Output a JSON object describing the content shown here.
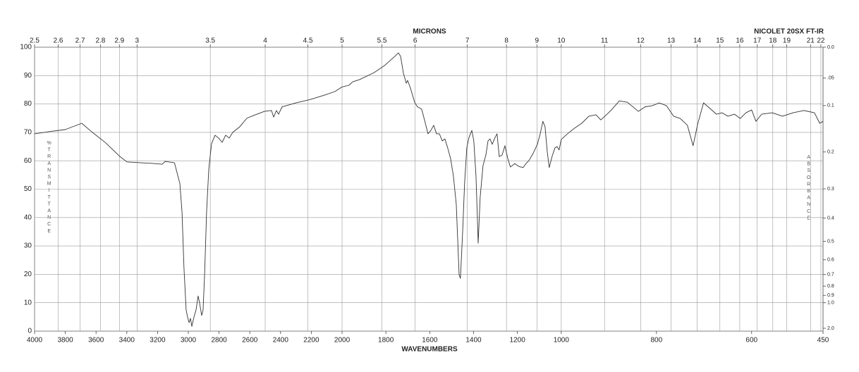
{
  "chart_data": {
    "type": "line",
    "title": "NICOLET 20SX FT-IR",
    "x_label": "WAVENUMBERS",
    "x2_label": "MICRONS",
    "y_label": "%TRANSMITTANCE",
    "y2_label": "ABSORBANCE",
    "color": "#333333",
    "grid": true,
    "xlim": [
      4000,
      450
    ],
    "xticks": [
      4000,
      3800,
      3600,
      3400,
      3200,
      3000,
      2800,
      2600,
      2400,
      2200,
      2000,
      1800,
      1600,
      1400,
      1200,
      1000,
      800,
      600,
      450
    ],
    "x2ticks": [
      2.5,
      2.6,
      2.7,
      2.8,
      2.9,
      3,
      3.5,
      4,
      4.5,
      5,
      5.5,
      6,
      7,
      8,
      9,
      10,
      11,
      12,
      13,
      14,
      15,
      16,
      17,
      18,
      19,
      21,
      22
    ],
    "ylim": [
      0,
      100
    ],
    "yticks": [
      0,
      10,
      20,
      30,
      40,
      50,
      60,
      70,
      80,
      90,
      100
    ],
    "y2ticks": [
      {
        "value": 0,
        "label": "0.0"
      },
      {
        "value": 0.05,
        "label": ".05"
      },
      0.1,
      0.2,
      0.3,
      0.4,
      0.5,
      0.6,
      0.7,
      0.8,
      0.9,
      {
        "value": 1,
        "label": "1.0"
      },
      {
        "value": 2,
        "label": "2.0"
      }
    ],
    "x": [
      4000,
      3900,
      3800,
      3693,
      3628,
      3537,
      3445,
      3399,
      3307,
      3239,
      3170,
      3150,
      3090,
      3055,
      3041,
      3028,
      3014,
      3005,
      2995,
      2986,
      2977,
      2963,
      2950,
      2936,
      2927,
      2913,
      2904,
      2894,
      2881,
      2867,
      2849,
      2826,
      2803,
      2780,
      2757,
      2734,
      2711,
      2665,
      2619,
      2573,
      2505,
      2459,
      2445,
      2427,
      2413,
      2390,
      2298,
      2206,
      2115,
      2046,
      2000,
      1968,
      1952,
      1920,
      1855,
      1807,
      1759,
      1743,
      1733,
      1720,
      1707,
      1701,
      1688,
      1669,
      1656,
      1637,
      1624,
      1608,
      1595,
      1582,
      1569,
      1556,
      1543,
      1531,
      1518,
      1505,
      1492,
      1479,
      1466,
      1460,
      1450,
      1441,
      1431,
      1421,
      1408,
      1399,
      1389,
      1379,
      1370,
      1357,
      1344,
      1334,
      1325,
      1315,
      1302,
      1293,
      1283,
      1270,
      1257,
      1244,
      1232,
      1212,
      1193,
      1174,
      1161,
      1148,
      1129,
      1109,
      1096,
      1084,
      1074,
      1064,
      1055,
      1042,
      1029,
      1019,
      1010,
      1000,
      987,
      972,
      957,
      942,
      927,
      917,
      905,
      893,
      878,
      861,
      838,
      824,
      809,
      794,
      779,
      764,
      750,
      735,
      723,
      713,
      701,
      686,
      674,
      662,
      650,
      636,
      624,
      612,
      600,
      591,
      579,
      557,
      535,
      513,
      490,
      468,
      457,
      450
    ],
    "values": [
      69.5,
      70.3,
      71,
      73.2,
      70.2,
      66.3,
      61.5,
      59.6,
      59.3,
      59.1,
      58.8,
      59.8,
      59.3,
      52,
      42,
      22,
      7.4,
      5,
      3,
      4.5,
      1.7,
      5,
      7.4,
      12.4,
      10,
      5.5,
      7.4,
      20,
      42,
      57,
      66,
      69,
      68,
      66.5,
      69,
      68,
      70,
      72,
      75,
      76,
      77.4,
      77.7,
      75.4,
      77.7,
      76.4,
      79,
      80.4,
      81.6,
      83.1,
      84.4,
      86,
      86.6,
      87.8,
      88.6,
      91,
      93.5,
      96.8,
      98,
      96.8,
      90.8,
      87.3,
      88.3,
      85.6,
      80.6,
      79,
      78.2,
      74.4,
      69.5,
      70.7,
      72.5,
      69.5,
      69.5,
      67,
      67.7,
      64.5,
      60.8,
      54.6,
      44.7,
      19.9,
      18.6,
      34.7,
      52.1,
      64.5,
      68.2,
      70.7,
      67,
      54.6,
      31,
      47.1,
      58.3,
      62,
      67,
      67.7,
      65.8,
      68.2,
      69.5,
      61.5,
      62,
      65.3,
      60.8,
      57.8,
      59,
      58,
      57.6,
      59,
      60,
      62.5,
      65.8,
      69.5,
      73.9,
      72,
      63.3,
      57.6,
      61.5,
      64.5,
      65,
      63.8,
      67.5,
      69.5,
      71.5,
      73.2,
      75.7,
      76.2,
      74.4,
      76.2,
      78.2,
      81.1,
      80.6,
      77.4,
      79,
      79.4,
      80.4,
      79.4,
      75.7,
      74.9,
      72.5,
      65.3,
      73.2,
      80.4,
      78.2,
      76.4,
      76.9,
      75.7,
      76.4,
      74.9,
      76.9,
      77.9,
      73.9,
      76.4,
      76.9,
      75.7,
      76.9,
      77.7,
      76.9,
      73.2,
      73.9
    ]
  }
}
